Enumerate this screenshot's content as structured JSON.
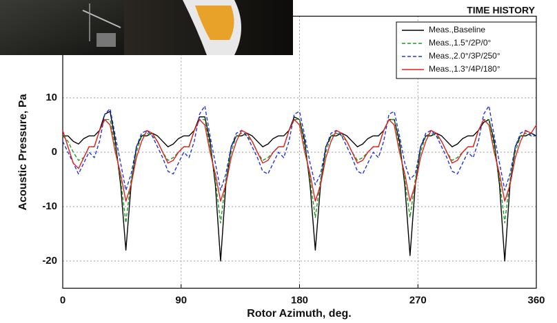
{
  "chart_data": {
    "type": "line",
    "title": "TIME HISTORY",
    "x_label": "Rotor Azimuth, deg.",
    "y_label": "Acoustic Pressure, Pa",
    "xlim": [
      0,
      360
    ],
    "xticks": [
      0,
      90,
      180,
      270,
      360
    ],
    "ylim": [
      -25,
      25
    ],
    "yticks": [
      -20,
      -10,
      0,
      10
    ],
    "grid": true,
    "legend": "upper right",
    "x": [
      0,
      4,
      8,
      12,
      16,
      20,
      24,
      28,
      32,
      36,
      40,
      44,
      48,
      52,
      56,
      60,
      64,
      68,
      72,
      76,
      80,
      84,
      88,
      92,
      96,
      100,
      104,
      108,
      112,
      116,
      120,
      124,
      128,
      132,
      136,
      140,
      144,
      148,
      152,
      156,
      160,
      164,
      168,
      172,
      176,
      180,
      184,
      188,
      192,
      196,
      200,
      204,
      208,
      212,
      216,
      220,
      224,
      228,
      232,
      236,
      240,
      244,
      248,
      252,
      256,
      260,
      264,
      268,
      272,
      276,
      280,
      284,
      288,
      292,
      296,
      300,
      304,
      308,
      312,
      316,
      320,
      324,
      328,
      332,
      336,
      340,
      344,
      348,
      352,
      356,
      360
    ],
    "series": [
      {
        "name": "Meas.,Baseline",
        "color": "#000000",
        "dash": false,
        "values": [
          3,
          3,
          2,
          1.5,
          2.5,
          3,
          3,
          4,
          7,
          7.5,
          2,
          -6,
          -18,
          -6,
          1,
          3,
          3,
          3.5,
          3,
          2,
          1,
          1.5,
          2.5,
          3,
          3,
          4,
          6.5,
          6.5,
          2,
          -6,
          -20,
          -6,
          1,
          3,
          3,
          3.5,
          3,
          2,
          1,
          1.5,
          2.5,
          3,
          3,
          4,
          6.5,
          6,
          2,
          -6,
          -18,
          -6,
          1,
          3,
          3,
          3.5,
          3,
          2,
          1,
          1.5,
          2.5,
          3,
          3,
          4,
          6,
          6,
          2,
          -6,
          -19,
          -6,
          1,
          3,
          3,
          3.5,
          3,
          2,
          1,
          1.5,
          2.5,
          3,
          3,
          4,
          5.5,
          6,
          2,
          -6,
          -20,
          -6,
          1,
          3,
          3,
          3.5,
          3
        ]
      },
      {
        "name": "Meas.,1.5°/2P/0°",
        "color": "#1a9a1a",
        "dash": true,
        "values": [
          3,
          2,
          0,
          -1.5,
          -1,
          1,
          1,
          4,
          6,
          6,
          1,
          -5,
          -13,
          -5,
          0,
          3,
          3.5,
          3,
          2,
          0,
          -1.5,
          -1,
          0,
          1,
          1,
          4,
          6,
          6,
          1,
          -5,
          -13,
          -5,
          0,
          3,
          3.5,
          3,
          2,
          0,
          -1.5,
          -1,
          0,
          1,
          1,
          4,
          6,
          6,
          1,
          -5,
          -12,
          -5,
          0,
          3,
          3.5,
          3,
          2,
          0,
          -1.5,
          -1,
          0,
          1,
          1,
          4,
          6,
          6,
          1,
          -5,
          -12,
          -5,
          0,
          3,
          3.5,
          3,
          2,
          0,
          -1.5,
          -1,
          0,
          1,
          1,
          4,
          6,
          6,
          1,
          -5,
          -13,
          -5,
          0,
          3,
          3.5,
          3,
          3
        ]
      },
      {
        "name": "Meas.,2.0°/3P/250°",
        "color": "#2233dd",
        "dash": true,
        "values": [
          2,
          0,
          -2,
          -4,
          -2,
          0,
          -1,
          2,
          7,
          8,
          3,
          -2,
          -7,
          -4,
          1,
          3.5,
          4,
          3,
          1,
          -1,
          -3.5,
          -4,
          -2,
          0,
          -1,
          2,
          7,
          8.5,
          3,
          -2,
          -7,
          -4,
          1,
          3.5,
          4,
          3,
          1,
          -1,
          -3.5,
          -4,
          -2,
          0,
          -1,
          2,
          7,
          7.5,
          3,
          -2,
          -6,
          -4,
          1,
          3.5,
          4,
          3,
          1,
          -1,
          -3.5,
          -4,
          -2,
          0,
          -1,
          2,
          7,
          7.5,
          3,
          -2,
          -5,
          -4,
          1,
          3.5,
          4,
          3,
          1,
          -1,
          -3.5,
          -4,
          -2,
          0,
          -1,
          2,
          7,
          8.5,
          3,
          -2,
          -7,
          -4,
          1,
          3.5,
          4,
          3,
          3
        ]
      },
      {
        "name": "Meas.,1.3°/4P/180°",
        "color": "#e02020",
        "dash": false,
        "values": [
          4,
          1,
          -2,
          -3,
          -1,
          1,
          1,
          4,
          6,
          5,
          0,
          -4,
          -9,
          -6,
          -1,
          2,
          4,
          3.5,
          2,
          0,
          -2,
          -1.5,
          0,
          1,
          1,
          4,
          6,
          5,
          0,
          -4,
          -9,
          -6,
          -1,
          2,
          4,
          3.5,
          2,
          0,
          -2,
          -1.5,
          0,
          1,
          1,
          4,
          6,
          5,
          0,
          -4,
          -9,
          -6,
          -1,
          2,
          4,
          3.5,
          2,
          0,
          -2,
          -1.5,
          0,
          1,
          1,
          4,
          6,
          5,
          0,
          -4,
          -9,
          -6,
          -1,
          2,
          4,
          3.5,
          2,
          0,
          -2,
          -1.5,
          0,
          1,
          1,
          4,
          6,
          5,
          0,
          -4,
          -9,
          -6,
          -1,
          2,
          4,
          3.5,
          5
        ]
      }
    ]
  }
}
